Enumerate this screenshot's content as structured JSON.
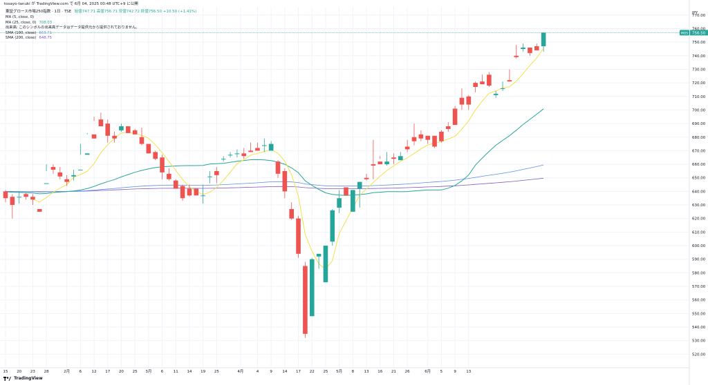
{
  "header": {
    "publish_line": "tosayo-tanuki が TradingView.com で 6月 04, 2025 00:48 UTC+9 に公開"
  },
  "legend": {
    "symbol_line": "東証グロース市場250指数 · 1日 · TSE",
    "ohlc": "始値747.71  高値756.71  安値742.72  終値756.50  +10.50 (+1.41%)",
    "rows": [
      {
        "label": "MA (5, close, 0)",
        "value": "",
        "color": "#f5e04b"
      },
      {
        "label": "MA (25, close, 0)",
        "value": "708.03",
        "color": "#26a69a"
      },
      {
        "label": "出来高: このシンボルの出来高データはデータ提供元から提供されておりません。",
        "value": "",
        "color": "#131722"
      },
      {
        "label": "SMA (100, close)",
        "value": "663.71",
        "color": "#5b8ee8"
      },
      {
        "label": "SMA (200, close)",
        "value": "648.75",
        "color": "#7e57c2"
      }
    ]
  },
  "price_axis": {
    "currency": "JPY",
    "last_price_label": "756.50",
    "marker_label": "MOS"
  },
  "footer": {
    "brand": "TradingView"
  },
  "colors": {
    "up": "#26a69a",
    "down": "#ef5350",
    "ma5": "#f5e04b",
    "ma25": "#26a69a",
    "sma100": "#5b8ee8",
    "sma200": "#7e57c2",
    "grid": "#f0f3fa"
  },
  "chart_data": {
    "type": "candlestick",
    "ylim": [
      510,
      776
    ],
    "y_ticks": [
      520,
      530,
      540,
      550,
      560,
      570,
      580,
      590,
      600,
      610,
      620,
      630,
      640,
      650,
      660,
      670,
      680,
      690,
      700,
      710,
      720,
      730,
      740,
      750,
      760,
      770
    ],
    "x_tick_labels": [
      {
        "i": 0,
        "t": "15"
      },
      {
        "i": 2,
        "t": "20"
      },
      {
        "i": 4,
        "t": "23"
      },
      {
        "i": 6,
        "t": "28"
      },
      {
        "i": 9,
        "t": "2月"
      },
      {
        "i": 11,
        "t": "6"
      },
      {
        "i": 13,
        "t": "12"
      },
      {
        "i": 15,
        "t": "17"
      },
      {
        "i": 17,
        "t": "20"
      },
      {
        "i": 19,
        "t": "25"
      },
      {
        "i": 21,
        "t": "3月"
      },
      {
        "i": 23,
        "t": "6"
      },
      {
        "i": 25,
        "t": "11"
      },
      {
        "i": 27,
        "t": "14"
      },
      {
        "i": 29,
        "t": "19"
      },
      {
        "i": 31,
        "t": "25"
      },
      {
        "i": 34.5,
        "t": "4月"
      },
      {
        "i": 37,
        "t": "4"
      },
      {
        "i": 39,
        "t": "9"
      },
      {
        "i": 41,
        "t": "14"
      },
      {
        "i": 43,
        "t": "17"
      },
      {
        "i": 45,
        "t": "22"
      },
      {
        "i": 47,
        "t": "25"
      },
      {
        "i": 49,
        "t": "5月"
      },
      {
        "i": 51,
        "t": "8"
      },
      {
        "i": 53,
        "t": "13"
      },
      {
        "i": 55,
        "t": "16"
      },
      {
        "i": 57,
        "t": "21"
      },
      {
        "i": 59,
        "t": "26"
      },
      {
        "i": 62,
        "t": "6月"
      },
      {
        "i": 64,
        "t": "5"
      },
      {
        "i": 66,
        "t": "9"
      },
      {
        "i": 68,
        "t": "13"
      }
    ],
    "candles": [
      [
        640,
        641,
        635,
        632
      ],
      [
        636,
        638,
        630,
        620
      ],
      [
        636,
        640,
        636,
        631
      ],
      [
        638,
        639,
        636,
        634
      ],
      [
        636,
        638,
        634,
        630
      ],
      [
        627,
        645,
        625,
        645
      ],
      [
        646,
        660,
        646,
        655
      ],
      [
        658,
        660,
        656,
        653
      ],
      [
        654,
        658,
        651,
        649
      ],
      [
        649,
        652,
        647,
        644
      ],
      [
        651,
        656,
        652,
        648
      ],
      [
        656,
        675,
        656,
        667
      ],
      [
        667,
        683,
        668,
        682
      ],
      [
        682,
        695,
        679,
        692
      ],
      [
        693,
        698,
        688,
        688
      ],
      [
        690,
        693,
        681,
        676
      ],
      [
        681,
        684,
        679,
        676
      ],
      [
        685,
        690,
        688,
        684
      ],
      [
        688,
        687,
        683,
        683
      ],
      [
        685,
        686,
        682,
        683
      ],
      [
        680,
        687,
        675,
        674
      ],
      [
        675,
        673,
        668,
        668
      ],
      [
        669,
        670,
        664,
        663
      ],
      [
        665,
        667,
        654,
        649
      ],
      [
        653,
        657,
        649,
        648
      ],
      [
        648,
        649,
        642,
        645
      ],
      [
        644,
        645,
        635,
        633
      ],
      [
        642,
        645,
        637,
        636
      ],
      [
        642,
        642,
        637,
        638
      ],
      [
        637,
        645,
        637,
        631
      ],
      [
        651,
        655,
        651,
        646
      ],
      [
        655,
        658,
        652,
        646
      ],
      [
        664,
        666,
        664,
        662
      ],
      [
        667,
        669,
        667,
        665
      ],
      [
        668,
        671,
        668,
        665
      ],
      [
        668,
        672,
        666,
        664
      ],
      [
        670,
        676,
        669,
        669
      ],
      [
        672,
        676,
        670,
        671
      ],
      [
        674,
        679,
        674,
        669
      ],
      [
        670,
        677,
        675,
        673
      ],
      [
        662,
        663,
        653,
        650
      ],
      [
        655,
        657,
        640,
        635
      ],
      [
        627,
        632,
        620,
        619
      ],
      [
        620,
        622,
        594,
        591
      ],
      [
        585,
        588,
        535,
        532
      ],
      [
        548,
        591,
        590,
        563
      ],
      [
        592,
        593,
        594,
        583
      ],
      [
        573,
        598,
        600,
        595
      ],
      [
        603,
        627,
        626,
        600
      ],
      [
        628,
        641,
        635,
        624
      ],
      [
        643,
        643,
        637,
        637
      ],
      [
        625,
        640,
        641,
        627
      ],
      [
        642,
        647,
        647,
        628
      ],
      [
        650,
        653,
        649,
        648
      ],
      [
        660,
        678,
        659,
        649
      ],
      [
        662,
        666,
        660,
        664
      ],
      [
        660,
        669,
        662,
        659
      ],
      [
        665,
        668,
        664,
        660
      ],
      [
        663,
        669,
        666,
        664
      ],
      [
        673,
        678,
        671,
        669
      ],
      [
        680,
        690,
        677,
        674
      ],
      [
        682,
        685,
        679,
        677
      ],
      [
        681,
        681,
        678,
        675
      ],
      [
        681,
        678,
        673,
        672
      ],
      [
        684,
        685,
        677,
        676
      ],
      [
        688,
        691,
        686,
        684
      ],
      [
        701,
        703,
        689,
        689
      ],
      [
        709,
        716,
        704,
        700
      ],
      [
        710,
        711,
        704,
        700
      ],
      [
        720,
        721,
        717,
        713
      ],
      [
        721,
        726,
        719,
        719
      ],
      [
        726,
        728,
        718,
        717
      ],
      [
        711,
        714,
        712,
        709
      ],
      [
        716,
        721,
        716,
        714
      ],
      [
        722,
        730,
        721,
        721
      ],
      [
        740,
        748,
        739,
        738
      ],
      [
        745,
        749,
        746,
        743
      ],
      [
        746,
        745,
        742,
        740
      ],
      [
        747,
        749,
        744,
        744
      ],
      [
        747,
        757,
        757,
        743
      ]
    ]
  }
}
